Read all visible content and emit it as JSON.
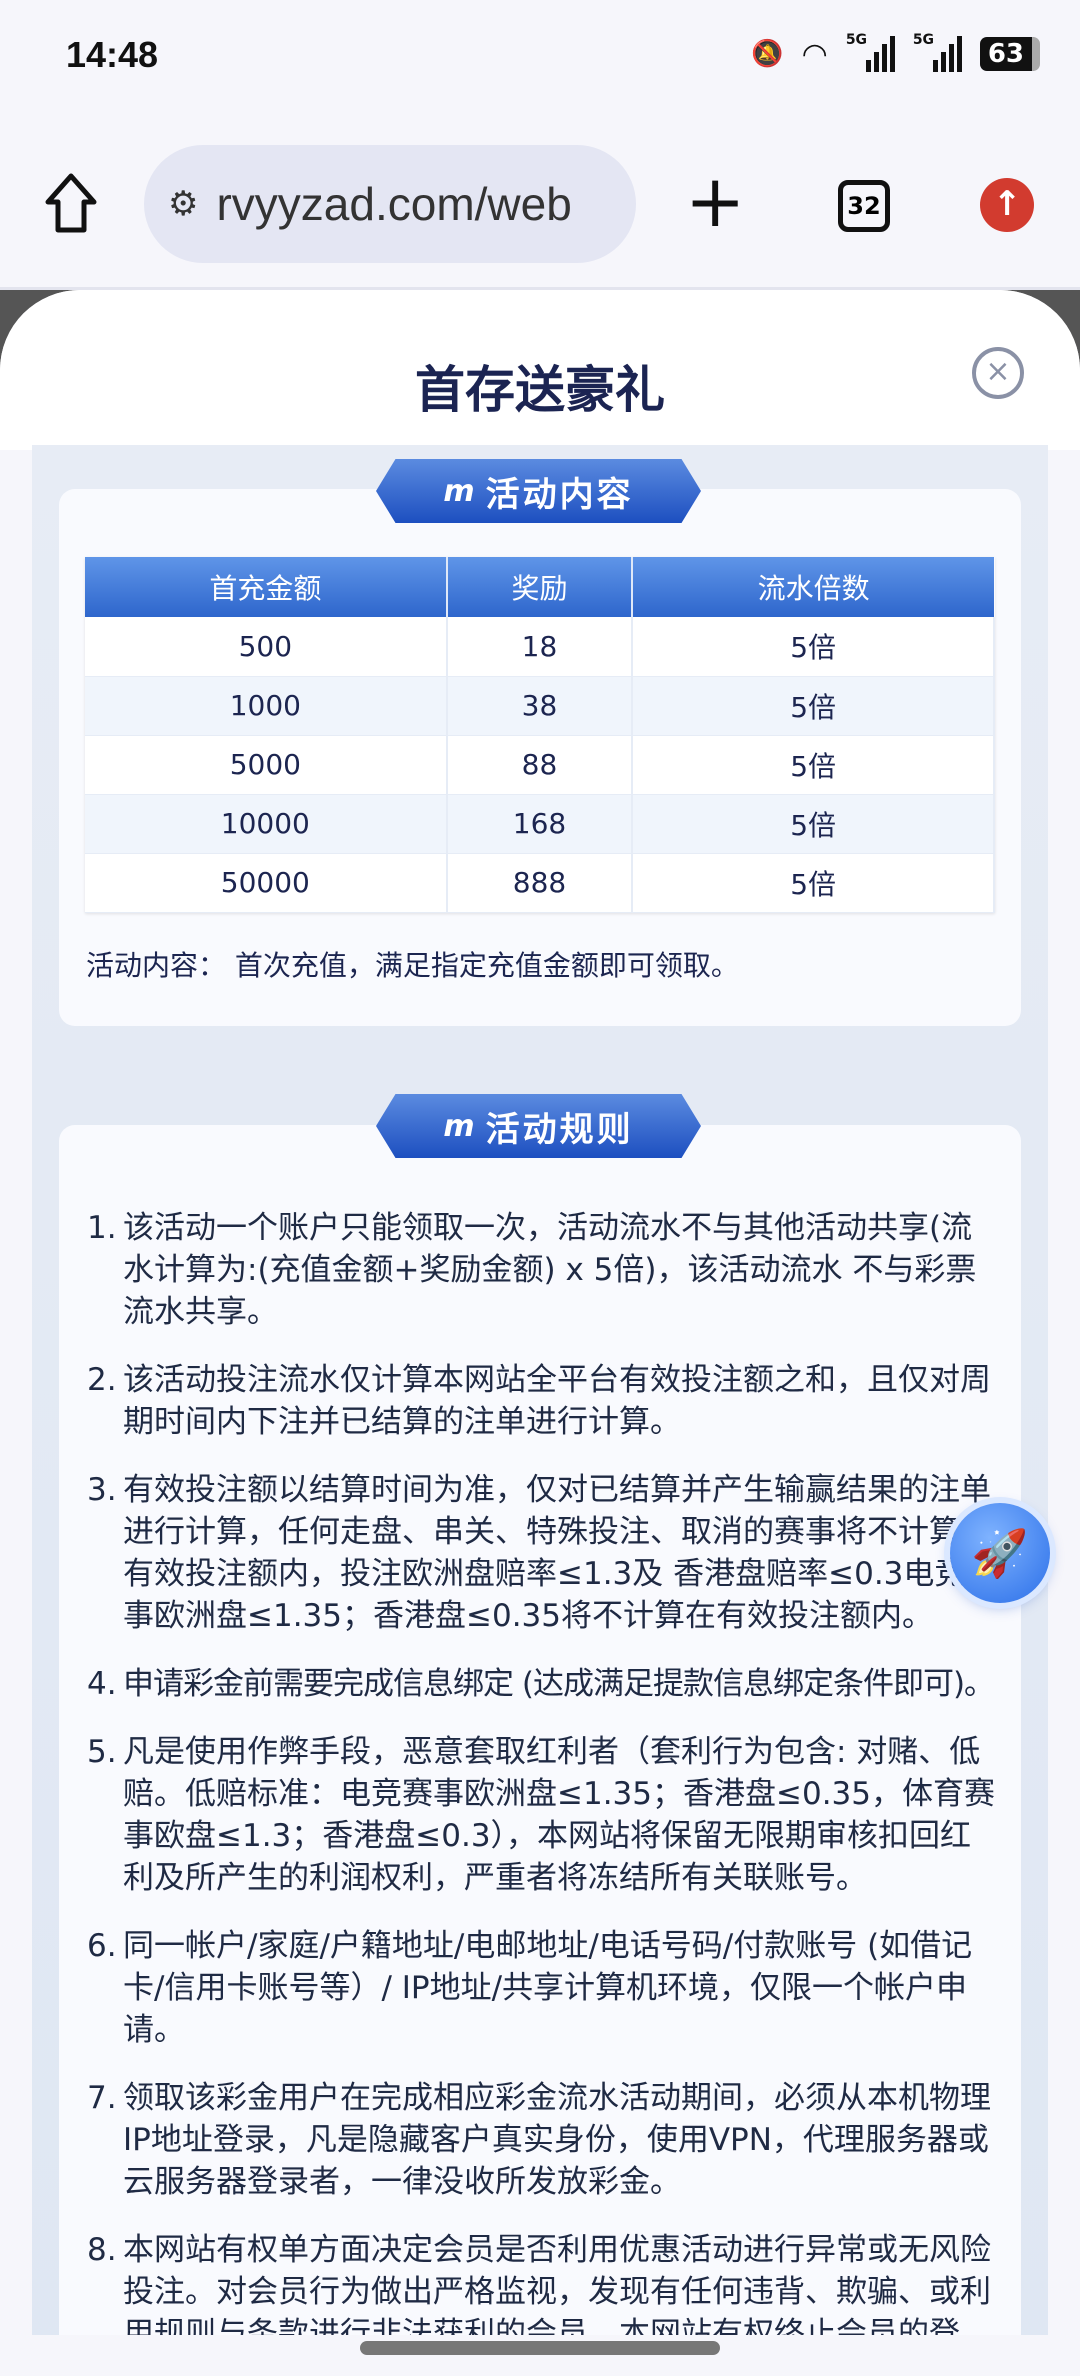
{
  "status_bar": {
    "time": "14:48",
    "network": "5G",
    "battery": "63"
  },
  "browser": {
    "url": "rvyyzad.com/web",
    "tab_count": "32"
  },
  "modal": {
    "title": "首存送豪礼",
    "section1": {
      "banner": "活动内容",
      "table": {
        "headers": [
          "首充金额",
          "奖励",
          "流水倍数"
        ],
        "rows": [
          [
            "500",
            "18",
            "5倍"
          ],
          [
            "1000",
            "38",
            "5倍"
          ],
          [
            "5000",
            "88",
            "5倍"
          ],
          [
            "10000",
            "168",
            "5倍"
          ],
          [
            "50000",
            "888",
            "5倍"
          ]
        ]
      },
      "note": "活动内容： 首次充值，满足指定充值金额即可领取。"
    },
    "section2": {
      "banner": "活动规则",
      "rules": [
        {
          "n": "1.",
          "text": "该活动一个账户只能领取一次，活动流水不与其他活动共享(流水计算为:(充值金额+奖励金额) x 5倍)，该活动流水 不与彩票流水共享。"
        },
        {
          "n": "2.",
          "text": "该活动投注流水仅计算本网站全平台有效投注额之和，且仅对周期时间内下注并已结算的注单进行计算。"
        },
        {
          "n": "3.",
          "text": "有效投注额以结算时间为准，仅对已结算并产生输赢结果的注单进行计算，任何走盘、串关、特殊投注、取消的赛事将不计算在有效投注额内，投注欧洲盘赔率≤1.3及 香港盘赔率≤0.3电竞赛事欧洲盘≤1.35；香港盘≤0.35将不计算在有效投注额内。"
        },
        {
          "n": "4.",
          "text": "申请彩金前需要完成信息绑定 (达成满足提款信息绑定条件即可)。"
        },
        {
          "n": "5.",
          "text": "凡是使用作弊手段，恶意套取红利者（套利行为包含: 对赌、低赔。低赔标准：电竞赛事欧洲盘≤1.35；香港盘≤0.35，体育赛事欧盘≤1.3；香港盘≤0.3），本网站将保留无限期审核扣回红利及所产生的利润权利，严重者将冻结所有关联账号。"
        },
        {
          "n": "6.",
          "text": "同一帐户/家庭/户籍地址/电邮地址/电话号码/付款账号 (如借记卡/信用卡账号等）/ IP地址/共享计算机环境，仅限一个帐户申请。"
        },
        {
          "n": "7.",
          "text": "领取该彩金用户在完成相应彩金流水活动期间，必须从本机物理IP地址登录，凡是隐藏客户真实身份，使用VPN，代理服务器或云服务器登录者，一律没收所发放彩金。"
        },
        {
          "n": "8.",
          "text": "本网站有权单方面决定会员是否利用优惠活动进行异常或无风险投注。对会员行为做出严格监视，发现有任何违背、欺骗、或利用规则与条款进行非法获利的会员，本网站有权终止会员的登录、暂停会员使用网站和没收奖金及赢利的权力，无须特"
        }
      ]
    }
  }
}
